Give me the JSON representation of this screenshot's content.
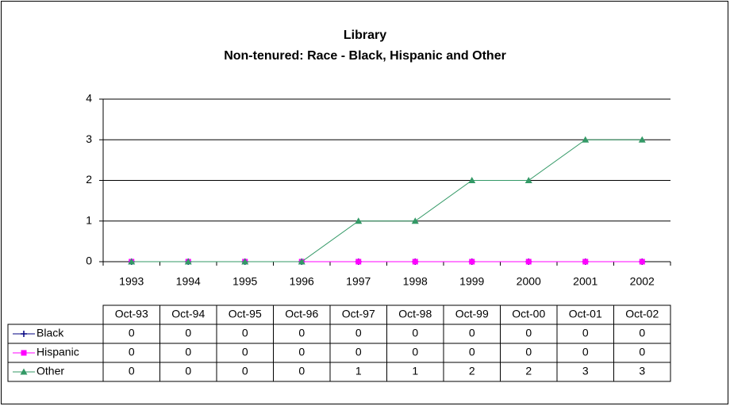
{
  "chart_data": {
    "type": "line",
    "title": "Library",
    "subtitle": "Non-tenured: Race - Black, Hispanic and Other",
    "categories": [
      "1993",
      "1994",
      "1995",
      "1996",
      "1997",
      "1998",
      "1999",
      "2000",
      "2001",
      "2002"
    ],
    "table_header": [
      "Oct-93",
      "Oct-94",
      "Oct-95",
      "Oct-96",
      "Oct-97",
      "Oct-98",
      "Oct-99",
      "Oct-00",
      "Oct-01",
      "Oct-02"
    ],
    "series": [
      {
        "name": "Black",
        "color": "#000080",
        "marker": "plus",
        "values": [
          0,
          0,
          0,
          0,
          0,
          0,
          0,
          0,
          0,
          0
        ]
      },
      {
        "name": "Hispanic",
        "color": "#ff00ff",
        "marker": "square",
        "values": [
          0,
          0,
          0,
          0,
          0,
          0,
          0,
          0,
          0,
          0
        ]
      },
      {
        "name": "Other",
        "color": "#339966",
        "marker": "triangle",
        "values": [
          0,
          0,
          0,
          0,
          1,
          1,
          2,
          2,
          3,
          3
        ]
      }
    ],
    "ylim": [
      0,
      4
    ],
    "yticks": [
      0,
      1,
      2,
      3,
      4
    ],
    "grid": true
  }
}
